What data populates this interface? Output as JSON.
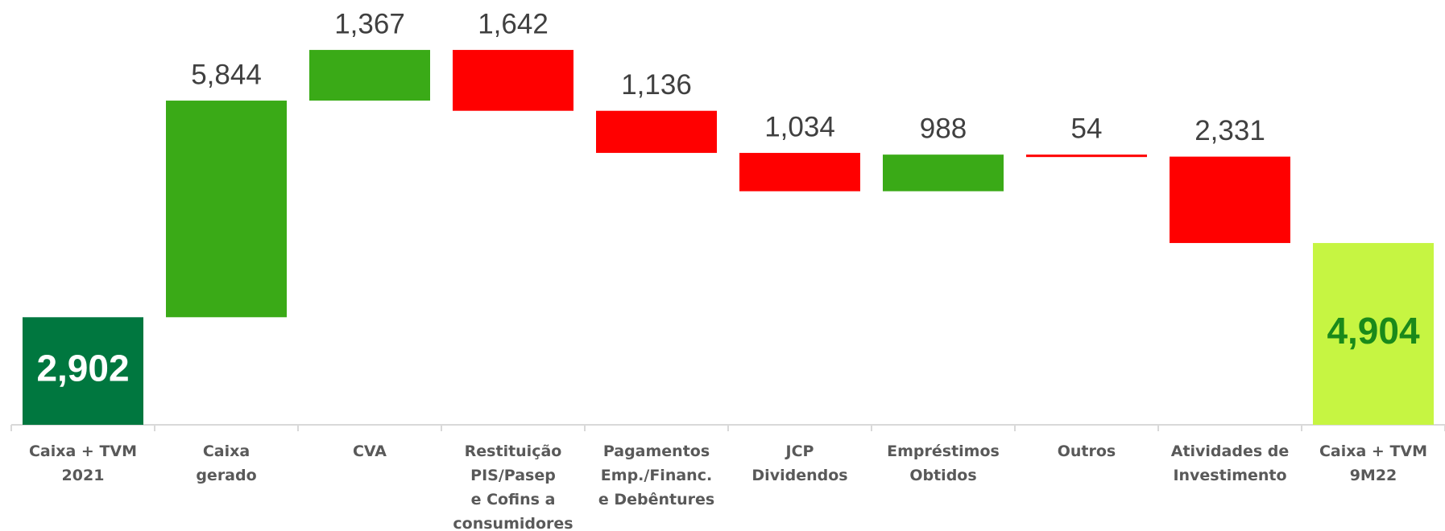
{
  "chart_data": {
    "type": "waterfall",
    "categories": [
      "Caixa + TVM\n2021",
      "Caixa\ngerado",
      "CVA",
      "Restituição\nPIS/Pasep\ne Cofins a\nconsumidores",
      "Pagamentos\nEmp./Financ.\ne Debêntures",
      "JCP\nDividendos",
      "Empréstimos\nObtidos",
      "Outros",
      "Atividades de\nInvestimento",
      "Caixa + TVM\n9M22"
    ],
    "values": [
      2902,
      5844,
      1367,
      1642,
      1136,
      1034,
      988,
      54,
      2331,
      4904
    ],
    "value_labels": [
      "2,902",
      "5,844",
      "1,367",
      "1,642",
      "1,136",
      "1,034",
      "988",
      "54",
      "2,331",
      "4,904"
    ],
    "measure": [
      "total",
      "increase",
      "increase",
      "decrease",
      "decrease",
      "decrease",
      "increase",
      "decrease",
      "decrease",
      "total"
    ],
    "colors": [
      "#00773f",
      "#3aaa17",
      "#3aaa17",
      "#ff0000",
      "#ff0000",
      "#ff0000",
      "#3aaa17",
      "#ff0000",
      "#ff0000",
      "#c6f542"
    ],
    "ylim": [
      0,
      11460
    ]
  }
}
